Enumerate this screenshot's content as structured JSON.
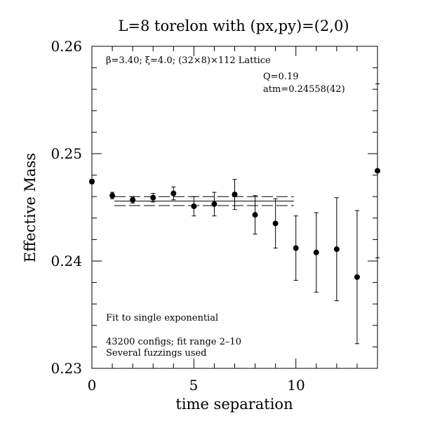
{
  "chart_data": {
    "type": "scatter",
    "title": "L=8 torelon with (px,py)=(2,0)",
    "xlabel": "time separation",
    "ylabel": "Effective Mass",
    "xlim": [
      0,
      14
    ],
    "ylim": [
      0.23,
      0.26
    ],
    "x_ticks": [
      "0",
      "5",
      "10"
    ],
    "y_ticks": [
      "0.23",
      "0.24",
      "0.25",
      "0.26"
    ],
    "annotations": {
      "lattice": "β=3.40; ξ=4.0; (32×8)×112 Lattice",
      "q": "Q=0.19",
      "mass": "atm=0.24558(42)",
      "fit": "Fit to single exponential",
      "configs": "43200 configs; fit range 2–10",
      "fuzz": "Several fuzzings used"
    },
    "fit": {
      "value": 0.24558,
      "error": 0.00042,
      "x_range": [
        1.1,
        9.9
      ]
    },
    "points": [
      {
        "x": 0,
        "y": 0.2474,
        "err": 0.0002
      },
      {
        "x": 1,
        "y": 0.2461,
        "err": 0.0003
      },
      {
        "x": 2,
        "y": 0.2457,
        "err": 0.0003
      },
      {
        "x": 3,
        "y": 0.2459,
        "err": 0.0004
      },
      {
        "x": 4,
        "y": 0.2463,
        "err": 0.0006
      },
      {
        "x": 5,
        "y": 0.2451,
        "err": 0.0009
      },
      {
        "x": 6,
        "y": 0.2453,
        "err": 0.0011
      },
      {
        "x": 7,
        "y": 0.2462,
        "err": 0.0014
      },
      {
        "x": 8,
        "y": 0.2443,
        "err": 0.0018
      },
      {
        "x": 9,
        "y": 0.2435,
        "err": 0.0023
      },
      {
        "x": 10,
        "y": 0.2412,
        "err": 0.003
      },
      {
        "x": 11,
        "y": 0.2408,
        "err": 0.0037
      },
      {
        "x": 12,
        "y": 0.2411,
        "err": 0.0048
      },
      {
        "x": 13,
        "y": 0.2385,
        "err": 0.0062
      },
      {
        "x": 14,
        "y": 0.2484,
        "err": 0.0081
      }
    ]
  }
}
